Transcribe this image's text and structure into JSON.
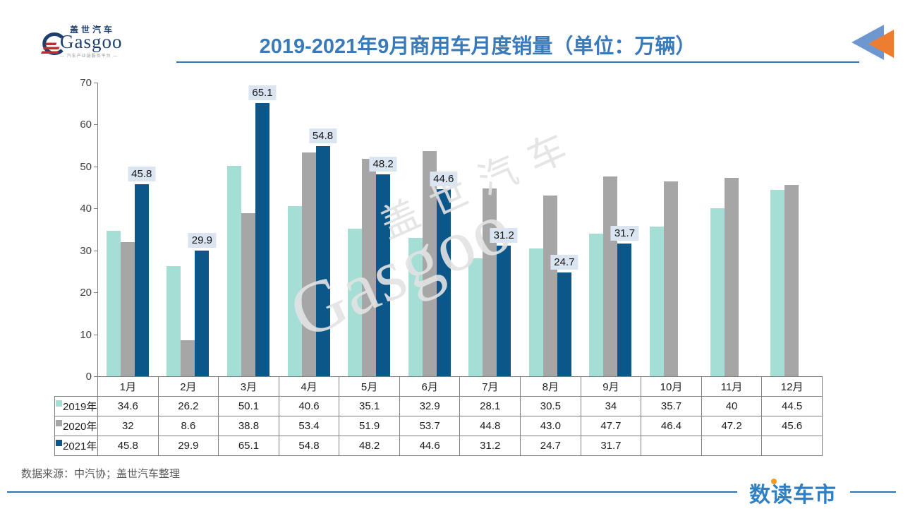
{
  "header": {
    "logo": {
      "cn": "盖世汽车",
      "en": "Gasgoo",
      "tagline": "— 汽车产业链服务平台 —"
    },
    "title": "2019-2021年9月商用车月度销量（单位：万辆）",
    "accent_line_color": "#2e75b6",
    "corner_icon_colors": {
      "blue": "#6f97cf",
      "orange": "#ed7d31"
    }
  },
  "chart_data": {
    "type": "bar",
    "title": "2019-2021年9月商用车月度销量（单位：万辆）",
    "unit": "万辆",
    "categories": [
      "1月",
      "2月",
      "3月",
      "4月",
      "5月",
      "6月",
      "7月",
      "8月",
      "9月",
      "10月",
      "11月",
      "12月"
    ],
    "series": [
      {
        "name": "2019年",
        "color": "#a5ded5",
        "values": [
          34.6,
          26.2,
          50.1,
          40.6,
          35.1,
          32.9,
          28.1,
          30.5,
          34,
          35.7,
          40,
          44.5
        ],
        "display": [
          "34.6",
          "26.2",
          "50.1",
          "40.6",
          "35.1",
          "32.9",
          "28.1",
          "30.5",
          "34",
          "35.7",
          "40",
          "44.5"
        ]
      },
      {
        "name": "2020年",
        "color": "#a6a6a6",
        "values": [
          32,
          8.6,
          38.8,
          53.4,
          51.9,
          53.7,
          44.8,
          43.0,
          47.7,
          46.4,
          47.2,
          45.6
        ],
        "display": [
          "32",
          "8.6",
          "38.8",
          "53.4",
          "51.9",
          "53.7",
          "44.8",
          "43.0",
          "47.7",
          "46.4",
          "47.2",
          "45.6"
        ]
      },
      {
        "name": "2021年",
        "color": "#0b5789",
        "values": [
          45.8,
          29.9,
          65.1,
          54.8,
          48.2,
          44.6,
          31.2,
          24.7,
          31.7,
          null,
          null,
          null
        ],
        "display": [
          "45.8",
          "29.9",
          "65.1",
          "54.8",
          "48.2",
          "44.6",
          "31.2",
          "24.7",
          "31.7",
          "",
          "",
          ""
        ]
      }
    ],
    "ylim": [
      0,
      70
    ],
    "yticks": [
      70,
      60,
      50,
      40,
      30,
      20,
      10,
      0
    ],
    "grid": false,
    "legend_position": "table-left",
    "data_labels": {
      "series": "2021年",
      "background": "#dbe5f1"
    }
  },
  "watermark": {
    "line1": "盖世汽车",
    "line2": "Gasgoo"
  },
  "footer": {
    "source": "数据来源：中汽协；盖世汽车整理",
    "brand": "数读车市",
    "brand_color": "#2e7fc4",
    "dot_color": "#f59a23"
  }
}
